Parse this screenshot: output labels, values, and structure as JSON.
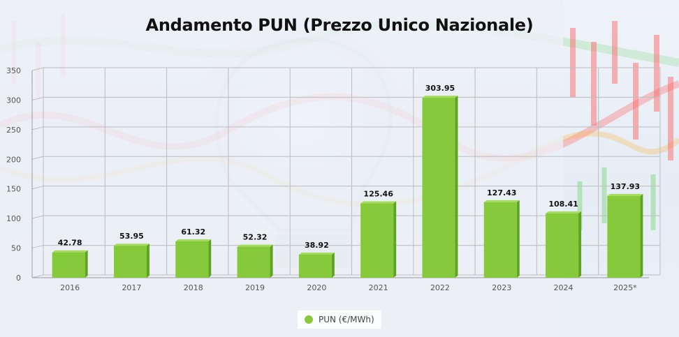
{
  "title": "Andamento PUN (Prezzo Unico Nazionale)",
  "legend": {
    "label": "PUN (€/MWh)"
  },
  "colors": {
    "bar_front": "#86c93b",
    "bar_side": "#5fa323",
    "bar_top": "#a5dc5e",
    "grid": "#bcbcbc",
    "label": "#111111",
    "tick": "#555555"
  },
  "chart_data": {
    "type": "bar",
    "title": "Andamento PUN (Prezzo Unico Nazionale)",
    "categories": [
      "2016",
      "2017",
      "2018",
      "2019",
      "2020",
      "2021",
      "2022",
      "2023",
      "2024",
      "2025*"
    ],
    "series": [
      {
        "name": "PUN (€/MWh)",
        "values": [
          42.78,
          53.95,
          61.32,
          52.32,
          38.92,
          125.46,
          303.95,
          127.43,
          108.41,
          137.93
        ]
      }
    ],
    "data_labels": [
      "42.78",
      "53.95",
      "61.32",
      "52.32",
      "38.92",
      "125.46",
      "303.95",
      "127.43",
      "108.41",
      "137.93"
    ],
    "ylim": [
      0,
      350
    ],
    "yticks": [
      0,
      50,
      100,
      150,
      200,
      250,
      300,
      350
    ],
    "ytick_labels": [
      "0",
      "50",
      "100",
      "150",
      "200",
      "250",
      "300",
      "350"
    ],
    "grid": true,
    "legend_position": "bottom-center"
  }
}
